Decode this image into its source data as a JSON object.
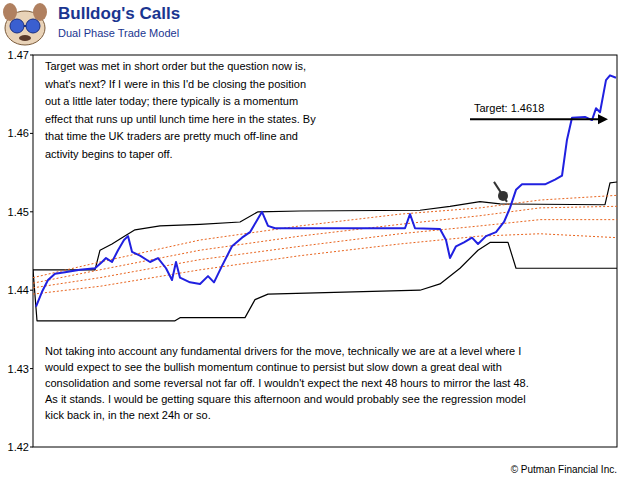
{
  "chart_data": {
    "type": "line",
    "title": "Bulldog's Calls",
    "subtitle": "Dual Phase Trade Model",
    "xlim": [
      0,
      584
    ],
    "ylim": [
      1.42,
      1.47
    ],
    "yticks": [
      1.42,
      1.43,
      1.44,
      1.45,
      1.46,
      1.47
    ],
    "tick_labels": "y",
    "grid": false,
    "series": [
      {
        "color": "#000000",
        "line_style": "solid",
        "x": [
          0,
          62,
          67,
          79,
          89,
          102,
          127,
          167,
          207,
          225,
          267,
          387,
          417,
          447,
          467,
          572,
          577,
          584
        ],
        "values": [
          1.4426,
          1.4426,
          1.4451,
          1.4459,
          1.4467,
          1.4477,
          1.4482,
          1.4484,
          1.4487,
          1.45,
          1.4501,
          1.4502,
          1.4507,
          1.4513,
          1.451,
          1.4509,
          1.4537,
          1.4538
        ]
      },
      {
        "color": "#000000",
        "line_style": "solid",
        "x": [
          0,
          4,
          142,
          147,
          212,
          222,
          235,
          387,
          407,
          427,
          445,
          457,
          475,
          483,
          584
        ],
        "values": [
          1.4426,
          1.4361,
          1.4361,
          1.4365,
          1.4365,
          1.4388,
          1.4395,
          1.44,
          1.4408,
          1.4428,
          1.4451,
          1.4461,
          1.4461,
          1.4428,
          1.4428
        ]
      },
      {
        "color": "#e8641e",
        "line_style": "dotted",
        "x": [
          0,
          67,
          167,
          267,
          367,
          447,
          507,
          584
        ],
        "values": [
          1.4416,
          1.4436,
          1.4464,
          1.4482,
          1.4497,
          1.4505,
          1.4515,
          1.4521
        ]
      },
      {
        "color": "#e8641e",
        "line_style": "dotted",
        "x": [
          0,
          67,
          167,
          267,
          367,
          447,
          507,
          584
        ],
        "values": [
          1.4409,
          1.4426,
          1.4451,
          1.4469,
          1.4484,
          1.4495,
          1.4505,
          1.4507
        ]
      },
      {
        "color": "#e8641e",
        "line_style": "dotted",
        "x": [
          0,
          67,
          167,
          267,
          367,
          447,
          507,
          584
        ],
        "values": [
          1.4403,
          1.4416,
          1.4439,
          1.4456,
          1.4472,
          1.4482,
          1.449,
          1.449
        ]
      },
      {
        "color": "#e8641e",
        "line_style": "dotted",
        "x": [
          0,
          67,
          167,
          267,
          367,
          447,
          507,
          584
        ],
        "values": [
          1.4395,
          1.4405,
          1.4426,
          1.4444,
          1.4459,
          1.4469,
          1.4472,
          1.4467
        ]
      },
      {
        "color": "#2020e0",
        "line_style": "solid",
        "x": [
          3,
          9,
          15,
          22,
          32,
          47,
          62,
          69,
          73,
          79,
          85,
          91,
          95,
          99,
          107,
          117,
          125,
          133,
          139,
          143,
          147,
          157,
          167,
          175,
          181,
          189,
          199,
          209,
          217,
          223,
          229,
          235,
          242,
          307,
          372,
          377,
          382,
          407,
          413,
          417,
          423,
          431,
          439,
          445,
          453,
          463,
          471,
          477,
          483,
          489,
          497,
          512,
          522,
          529,
          534,
          539,
          552,
          559,
          563,
          567,
          573,
          577,
          583
        ],
        "values": [
          1.4379,
          1.4398,
          1.4413,
          1.4421,
          1.4423,
          1.4426,
          1.4428,
          1.4436,
          1.4441,
          1.4436,
          1.4451,
          1.4464,
          1.4469,
          1.4449,
          1.4444,
          1.4436,
          1.4441,
          1.4428,
          1.4413,
          1.4436,
          1.4416,
          1.441,
          1.4408,
          1.4418,
          1.441,
          1.4431,
          1.4456,
          1.4467,
          1.4474,
          1.4487,
          1.45,
          1.4482,
          1.4479,
          1.4479,
          1.4479,
          1.4497,
          1.4479,
          1.4478,
          1.4464,
          1.4441,
          1.4456,
          1.4461,
          1.4467,
          1.4459,
          1.4469,
          1.4474,
          1.4487,
          1.4505,
          1.4528,
          1.4535,
          1.4535,
          1.4535,
          1.4541,
          1.4546,
          1.4592,
          1.462,
          1.4621,
          1.4617,
          1.4632,
          1.4627,
          1.4668,
          1.4674,
          1.4671
        ]
      }
    ],
    "target": {
      "label": "Target: 1.4618",
      "value": 1.4618
    },
    "signal": {
      "x": 477,
      "value": 1.4505
    },
    "annotations": [
      {
        "lines": [
          "Target was met in short order but the question now is,",
          "what's next? If I were in this I'd be closing the position",
          "out a little later today; there typically is a momentum",
          "effect that runs up until lunch time here in the states.  By",
          "that time the UK traders are pretty much off-line and",
          "activity begins to taper off."
        ]
      },
      {
        "lines": [
          "Not taking into account any fundamental drivers for the move, technically we are at a level where I",
          "would expect to see the bullish momentum continue to persist but slow down a great deal with",
          "consolidation and some reversal not far off.  I wouldn't expect the next 48 hours to mirror the last 48.",
          "As it stands.  I would be getting square this afternoon and would probably see the regression model",
          "kick back in, in the next 24h or so."
        ]
      }
    ],
    "credit": "© Putman Financial Inc."
  }
}
